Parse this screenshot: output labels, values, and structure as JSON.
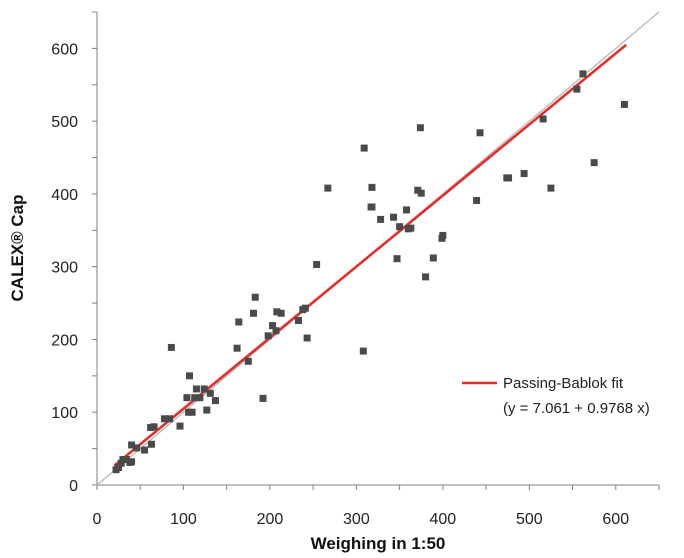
{
  "chart_data": {
    "type": "scatter",
    "xlabel": "Weighing in 1:50",
    "ylabel": "CALEX® Cap",
    "xlim": [
      0,
      650
    ],
    "ylim": [
      0,
      650
    ],
    "xticks": [
      "0",
      "100",
      "200",
      "300",
      "400",
      "500",
      "600"
    ],
    "yticks": [
      "0",
      "100",
      "200",
      "300",
      "400",
      "500",
      "600"
    ],
    "grid": false,
    "legend_position": "bottom-right",
    "colors": {
      "points": "#4a4a4a",
      "fit": "#e0302a",
      "identity": "#b8b8b8"
    },
    "series": [
      {
        "marker": "square",
        "x": [
          22,
          25,
          28,
          30,
          34,
          38,
          40,
          40,
          46,
          55,
          62,
          63,
          66,
          78,
          84,
          86,
          96,
          104,
          106,
          107,
          110,
          113,
          115,
          119,
          124,
          127,
          131,
          137,
          162,
          164,
          175,
          181,
          183,
          192,
          198,
          203,
          207,
          208,
          213,
          233,
          238,
          241,
          243,
          254,
          267,
          308,
          309,
          317,
          318,
          318,
          328,
          343,
          347,
          350,
          358,
          360,
          363,
          371,
          374,
          375,
          380,
          389,
          399,
          400,
          439,
          443,
          474,
          476,
          494,
          516,
          525,
          555,
          562,
          575,
          610
        ],
        "y": [
          21,
          24,
          30,
          35,
          35,
          31,
          55,
          32,
          51,
          48,
          79,
          56,
          80,
          91,
          91,
          189,
          81,
          120,
          100,
          150,
          100,
          120,
          132,
          120,
          132,
          103,
          126,
          116,
          188,
          224,
          170,
          236,
          258,
          119,
          205,
          219,
          212,
          238,
          236,
          226,
          241,
          243,
          202,
          303,
          408,
          184,
          463,
          382,
          409,
          382,
          365,
          368,
          311,
          355,
          378,
          352,
          353,
          405,
          491,
          401,
          286,
          312,
          339,
          343,
          391,
          484,
          422,
          422,
          428,
          503,
          408,
          544,
          565,
          443,
          523
        ]
      }
    ],
    "fit": {
      "name": "Passing-Bablok fit",
      "equation": "(y = 7.061 + 0.9768 x)",
      "intercept": 7.061,
      "slope": 0.9768,
      "x_range": [
        20,
        612
      ]
    },
    "reference_line": {
      "type": "identity",
      "x_range": [
        0,
        650
      ]
    }
  }
}
